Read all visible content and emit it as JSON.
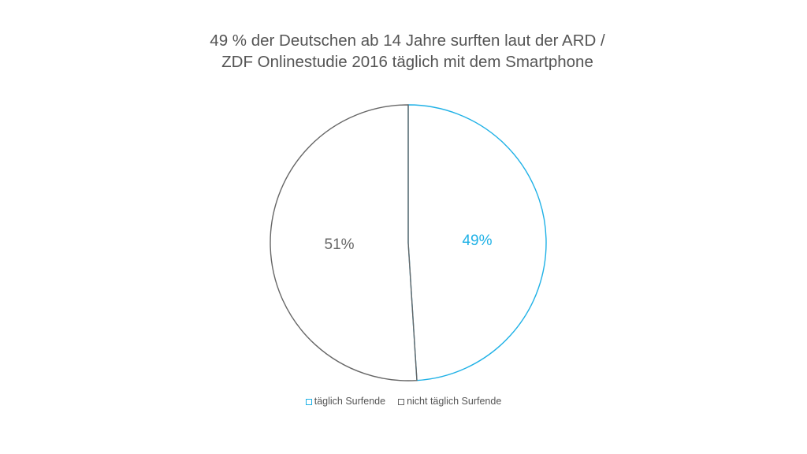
{
  "chart_data": {
    "type": "pie",
    "title": "49 % der Deutschen ab 14 Jahre surften laut der ARD / ZDF Onlinestudie 2016 täglich mit dem Smartphone",
    "slices": [
      {
        "name": "täglich Surfende",
        "value": 49,
        "label": "49%",
        "color": "#1fb1e6"
      },
      {
        "name": "nicht täglich Surfende",
        "value": 51,
        "label": "51%",
        "color": "#666666"
      }
    ],
    "legend_placement": "bottom"
  }
}
